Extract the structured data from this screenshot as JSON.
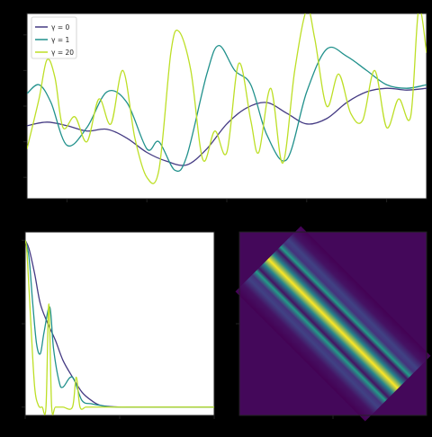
{
  "chart_data": [
    {
      "type": "line",
      "legend_position": "top-left",
      "grid": false,
      "xlim": [
        0,
        1
      ],
      "ylim": [
        -2.6,
        2.6
      ],
      "series": [
        {
          "name": "γ = 0",
          "color": "#443a83",
          "x": [
            0,
            0.05,
            0.1,
            0.15,
            0.2,
            0.25,
            0.3,
            0.35,
            0.4,
            0.45,
            0.5,
            0.55,
            0.6,
            0.65,
            0.7,
            0.75,
            0.8,
            0.85,
            0.9,
            0.95,
            1.0
          ],
          "y": [
            -0.55,
            -0.45,
            -0.55,
            -0.7,
            -0.65,
            -0.9,
            -1.3,
            -1.55,
            -1.65,
            -1.2,
            -0.5,
            -0.05,
            0.1,
            -0.2,
            -0.5,
            -0.35,
            0.1,
            0.4,
            0.5,
            0.45,
            0.5
          ]
        },
        {
          "name": "γ = 1",
          "color": "#21918c",
          "x": [
            0,
            0.03,
            0.06,
            0.1,
            0.15,
            0.2,
            0.25,
            0.3,
            0.33,
            0.37,
            0.4,
            0.45,
            0.48,
            0.52,
            0.56,
            0.6,
            0.65,
            0.7,
            0.75,
            0.8,
            0.85,
            0.9,
            0.95,
            1.0
          ],
          "y": [
            0.35,
            0.6,
            0.1,
            -1.1,
            -0.6,
            0.4,
            0.1,
            -1.2,
            -1.0,
            -1.8,
            -1.4,
            0.9,
            1.7,
            1.0,
            0.6,
            -0.8,
            -1.5,
            0.4,
            1.6,
            1.4,
            1.0,
            0.6,
            0.5,
            0.6
          ]
        },
        {
          "name": "γ = 20",
          "color": "#bddf26",
          "x": [
            0,
            0.03,
            0.05,
            0.07,
            0.09,
            0.12,
            0.15,
            0.18,
            0.21,
            0.24,
            0.27,
            0.3,
            0.33,
            0.36,
            0.38,
            0.41,
            0.44,
            0.47,
            0.5,
            0.53,
            0.56,
            0.58,
            0.61,
            0.64,
            0.67,
            0.7,
            0.72,
            0.75,
            0.78,
            0.81,
            0.84,
            0.87,
            0.9,
            0.93,
            0.96,
            0.98,
            1.0
          ],
          "y": [
            -1.2,
            0.2,
            1.3,
            0.8,
            -0.6,
            -0.3,
            -1.0,
            0.2,
            -0.5,
            1.0,
            -0.9,
            -2.0,
            -1.8,
            1.5,
            2.1,
            1.0,
            -1.5,
            -0.7,
            -1.3,
            1.2,
            -0.4,
            -1.3,
            0.5,
            -1.6,
            1.0,
            2.7,
            1.9,
            0.0,
            0.9,
            -0.2,
            -0.4,
            1.0,
            -0.6,
            0.2,
            -0.3,
            2.7,
            1.5
          ]
        }
      ]
    },
    {
      "type": "line",
      "xlim": [
        0,
        1
      ],
      "ylim": [
        -0.05,
        1.05
      ],
      "series": [
        {
          "name": "γ = 0",
          "color": "#443a83",
          "x": [
            0,
            0.02,
            0.05,
            0.08,
            0.12,
            0.16,
            0.2,
            0.25,
            0.3,
            0.35,
            0.4,
            0.5,
            0.6,
            1.0
          ],
          "y": [
            1.0,
            0.95,
            0.8,
            0.62,
            0.5,
            0.4,
            0.28,
            0.18,
            0.09,
            0.04,
            0.01,
            0.0,
            0.0,
            0.0
          ]
        },
        {
          "name": "γ = 1",
          "color": "#21918c",
          "x": [
            0,
            0.02,
            0.04,
            0.06,
            0.08,
            0.1,
            0.13,
            0.15,
            0.18,
            0.2,
            0.25,
            0.3,
            0.35,
            0.4,
            0.5,
            1.0
          ],
          "y": [
            1.0,
            0.9,
            0.62,
            0.38,
            0.32,
            0.45,
            0.6,
            0.35,
            0.15,
            0.12,
            0.18,
            0.04,
            0.02,
            0.01,
            0.0,
            0.0
          ]
        },
        {
          "name": "γ = 20",
          "color": "#bddf26",
          "x": [
            0,
            0.01,
            0.03,
            0.05,
            0.07,
            0.09,
            0.11,
            0.125,
            0.14,
            0.16,
            0.2,
            0.25,
            0.27,
            0.29,
            0.32,
            0.35,
            0.4,
            0.45,
            0.5,
            1.0
          ],
          "y": [
            1.0,
            0.92,
            0.5,
            0.12,
            0.01,
            0.0,
            0.0,
            0.62,
            0.0,
            0.0,
            0.0,
            0.0,
            0.18,
            0.0,
            0.0,
            0.0,
            0.0,
            0.0,
            0.0,
            0.0
          ]
        }
      ]
    },
    {
      "type": "heatmap",
      "colormap": "viridis",
      "description_of_values": "Toeplitz covariance matrix: bright yellow main diagonal, teal bands on either side, dark purple elsewhere",
      "band_profile": [
        {
          "offset": 0.0,
          "value": 1.0
        },
        {
          "offset": 0.05,
          "value": 0.45
        },
        {
          "offset": 0.1,
          "value": 0.05
        },
        {
          "offset": 0.13,
          "value": 0.55
        },
        {
          "offset": 0.17,
          "value": 0.15
        },
        {
          "offset": 0.21,
          "value": 0.2
        },
        {
          "offset": 0.27,
          "value": 0.05
        },
        {
          "offset": 0.35,
          "value": 0.0
        }
      ]
    }
  ]
}
